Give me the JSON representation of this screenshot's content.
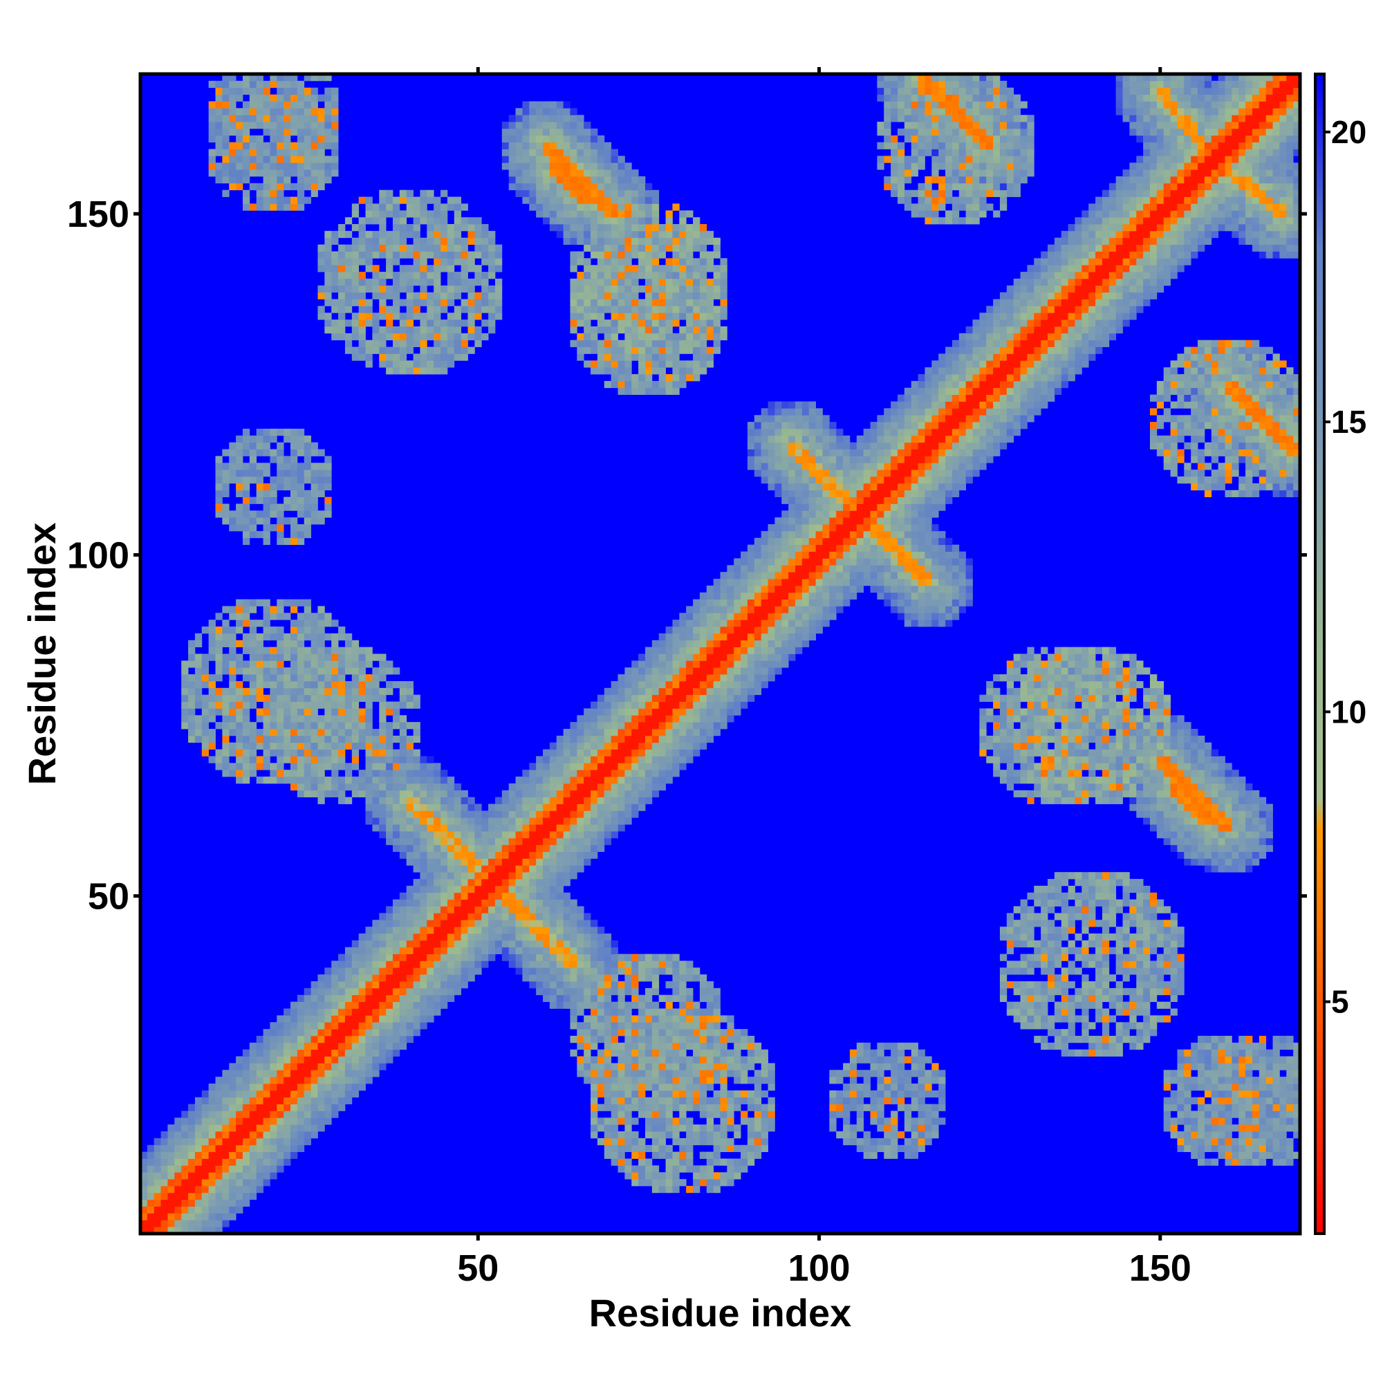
{
  "chart_data": {
    "type": "heatmap",
    "title": "",
    "xlabel": "Residue index",
    "ylabel": "Residue index",
    "n_residues": 170,
    "xlim": [
      1,
      170
    ],
    "ylim": [
      1,
      170
    ],
    "x_ticks": [
      50,
      100,
      150
    ],
    "x_tick_labels": [
      "50",
      "100",
      "150"
    ],
    "y_ticks": [
      50,
      100,
      150
    ],
    "y_tick_labels": [
      "50",
      "100",
      "150"
    ],
    "colorbar": {
      "ticks": [
        5,
        10,
        15,
        20
      ],
      "tick_labels": [
        "5",
        "10",
        "15",
        "20"
      ],
      "range": [
        1,
        21
      ],
      "placement": "right",
      "stops": [
        {
          "value": 1,
          "color": "#ff0000"
        },
        {
          "value": 4,
          "color": "#ff4500"
        },
        {
          "value": 8,
          "color": "#ff9900"
        },
        {
          "value": 8.5,
          "color": "#a8c090"
        },
        {
          "value": 11,
          "color": "#9bb98f"
        },
        {
          "value": 14,
          "color": "#7f9fb0"
        },
        {
          "value": 18,
          "color": "#5f80c8"
        },
        {
          "value": 21,
          "color": "#0000ff"
        }
      ]
    },
    "value_bands": {
      "contact": 8,
      "near": 16,
      "far": 21
    },
    "features": [
      {
        "kind": "diagonal",
        "start": 1,
        "end": 170,
        "value": 2
      },
      {
        "kind": "cross-strand",
        "start": [
          52,
          52
        ],
        "end": [
          40,
          64
        ],
        "value": 7
      },
      {
        "kind": "cross-strand",
        "start": [
          52,
          52
        ],
        "end": [
          64,
          40
        ],
        "value": 7
      },
      {
        "kind": "cross-strand",
        "start": [
          106,
          106
        ],
        "end": [
          96,
          116
        ],
        "value": 7
      },
      {
        "kind": "cross-strand",
        "start": [
          106,
          106
        ],
        "end": [
          116,
          96
        ],
        "value": 7
      },
      {
        "kind": "cross-strand",
        "start": [
          158,
          158
        ],
        "end": [
          150,
          168
        ],
        "value": 7
      },
      {
        "kind": "cross-strand",
        "start": [
          158,
          158
        ],
        "end": [
          168,
          150
        ],
        "value": 7
      },
      {
        "kind": "cross-strand",
        "start": [
          60,
          160
        ],
        "end": [
          70,
          150
        ],
        "value": 6
      },
      {
        "kind": "cross-strand",
        "start": [
          160,
          60
        ],
        "end": [
          150,
          70
        ],
        "value": 6
      },
      {
        "kind": "cross-strand",
        "start": [
          115,
          170
        ],
        "end": [
          125,
          160
        ],
        "value": 6
      },
      {
        "kind": "cross-strand",
        "start": [
          170,
          115
        ],
        "end": [
          160,
          125
        ],
        "value": 6
      },
      {
        "kind": "cross-strand",
        "start": [
          157,
          61
        ],
        "end": [
          152,
          66
        ],
        "value": 6
      },
      {
        "kind": "cross-strand",
        "start": [
          61,
          157
        ],
        "end": [
          66,
          152
        ],
        "value": 6
      },
      {
        "kind": "patch",
        "center": [
          40,
          140
        ],
        "radius": 14,
        "value": 12
      },
      {
        "kind": "patch",
        "center": [
          140,
          40
        ],
        "radius": 14,
        "value": 12
      },
      {
        "kind": "patch",
        "center": [
          75,
          140
        ],
        "radius": 12,
        "value": 11
      },
      {
        "kind": "patch",
        "center": [
          140,
          75
        ],
        "radius": 12,
        "value": 11
      },
      {
        "kind": "patch",
        "center": [
          20,
          80
        ],
        "radius": 14,
        "value": 12
      },
      {
        "kind": "patch",
        "center": [
          80,
          20
        ],
        "radius": 14,
        "value": 12
      },
      {
        "kind": "patch",
        "center": [
          75,
          30
        ],
        "radius": 12,
        "value": 12
      },
      {
        "kind": "patch",
        "center": [
          30,
          75
        ],
        "radius": 12,
        "value": 12
      },
      {
        "kind": "patch",
        "center": [
          20,
          160
        ],
        "radius": 10,
        "value": 13
      },
      {
        "kind": "patch",
        "center": [
          160,
          20
        ],
        "radius": 10,
        "value": 13
      },
      {
        "kind": "patch",
        "center": [
          135,
          75
        ],
        "radius": 12,
        "value": 12
      },
      {
        "kind": "patch",
        "center": [
          75,
          135
        ],
        "radius": 12,
        "value": 12
      },
      {
        "kind": "patch",
        "center": [
          110,
          20
        ],
        "radius": 9,
        "value": 13
      },
      {
        "kind": "patch",
        "center": [
          20,
          110
        ],
        "radius": 9,
        "value": 13
      },
      {
        "kind": "patch",
        "center": [
          160,
          120
        ],
        "radius": 12,
        "value": 12
      },
      {
        "kind": "patch",
        "center": [
          120,
          160
        ],
        "radius": 12,
        "value": 12
      },
      {
        "kind": "patch",
        "center": [
          165,
          20
        ],
        "radius": 10,
        "value": 13
      },
      {
        "kind": "patch",
        "center": [
          20,
          165
        ],
        "radius": 10,
        "value": 13
      }
    ]
  }
}
